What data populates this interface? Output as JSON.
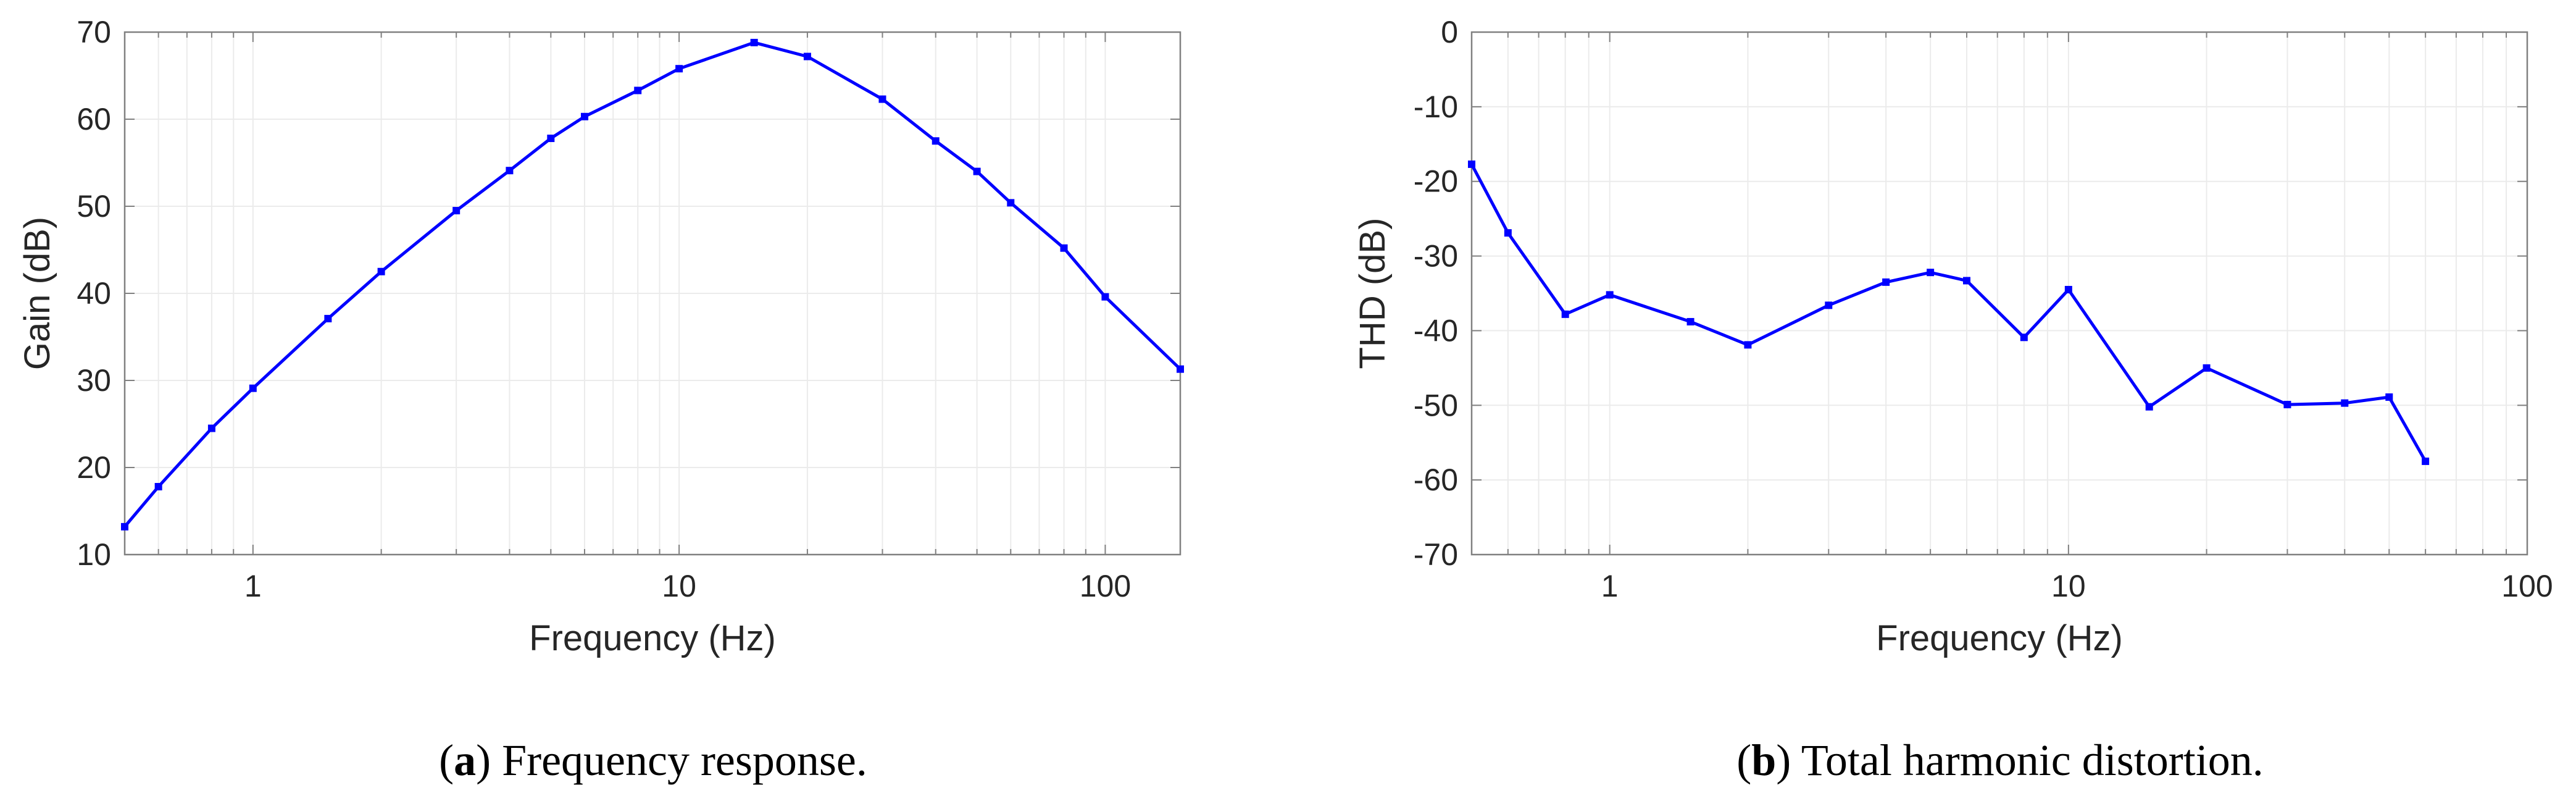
{
  "colors": {
    "series": "#0000ff",
    "axes": "#808080",
    "grid": "#ebebeb",
    "text": "#262626"
  },
  "panels": [
    {
      "caption": {
        "open": "(",
        "letter": "a",
        "close": ")",
        "text": " Frequency response."
      }
    },
    {
      "caption": {
        "open": "(",
        "letter": "b",
        "close": ")",
        "text": " Total harmonic distortion."
      }
    }
  ],
  "chart_data": [
    {
      "type": "line",
      "xlabel": "Frequency (Hz)",
      "ylabel": "Gain (dB)",
      "xscale": "log",
      "xlim": [
        0.5,
        150
      ],
      "ylim": [
        10,
        70
      ],
      "xticks": [
        1,
        10,
        100
      ],
      "xtick_labels": [
        "1",
        "10",
        "100"
      ],
      "yticks": [
        10,
        20,
        30,
        40,
        50,
        60,
        70
      ],
      "ytick_labels": [
        "10",
        "20",
        "30",
        "40",
        "50",
        "60",
        "70"
      ],
      "grid": true,
      "marker": "square",
      "x": [
        0.5,
        0.6,
        0.8,
        1,
        1.5,
        2,
        3,
        4,
        5,
        6,
        8,
        10,
        15,
        20,
        30,
        40,
        50,
        60,
        80,
        100,
        150
      ],
      "y": [
        13.2,
        17.8,
        24.5,
        29.1,
        37.1,
        42.5,
        49.5,
        54.1,
        57.8,
        60.3,
        63.3,
        65.8,
        68.8,
        67.2,
        62.3,
        57.5,
        54.0,
        50.4,
        45.2,
        39.6,
        31.3
      ]
    },
    {
      "type": "line",
      "xlabel": "Frequency (Hz)",
      "ylabel": "THD (dB)",
      "xscale": "log",
      "xlim": [
        0.5,
        100
      ],
      "ylim": [
        -70,
        0
      ],
      "xticks": [
        1,
        10,
        100
      ],
      "xtick_labels": [
        "1",
        "10",
        "100"
      ],
      "yticks": [
        -70,
        -60,
        -50,
        -40,
        -30,
        -20,
        -10,
        0
      ],
      "ytick_labels": [
        "-70",
        "-60",
        "-50",
        "-40",
        "-30",
        "-20",
        "-10",
        "0"
      ],
      "grid": true,
      "marker": "square",
      "x": [
        0.5,
        0.6,
        0.8,
        1,
        1.5,
        2,
        3,
        4,
        5,
        6,
        8,
        10,
        15,
        20,
        30,
        40,
        50,
        60
      ],
      "y": [
        -17.7,
        -26.9,
        -37.8,
        -35.2,
        -38.8,
        -41.9,
        -36.6,
        -33.5,
        -32.2,
        -33.3,
        -40.9,
        -34.5,
        -50.2,
        -45.0,
        -49.9,
        -49.7,
        -48.9,
        -57.5
      ]
    }
  ]
}
